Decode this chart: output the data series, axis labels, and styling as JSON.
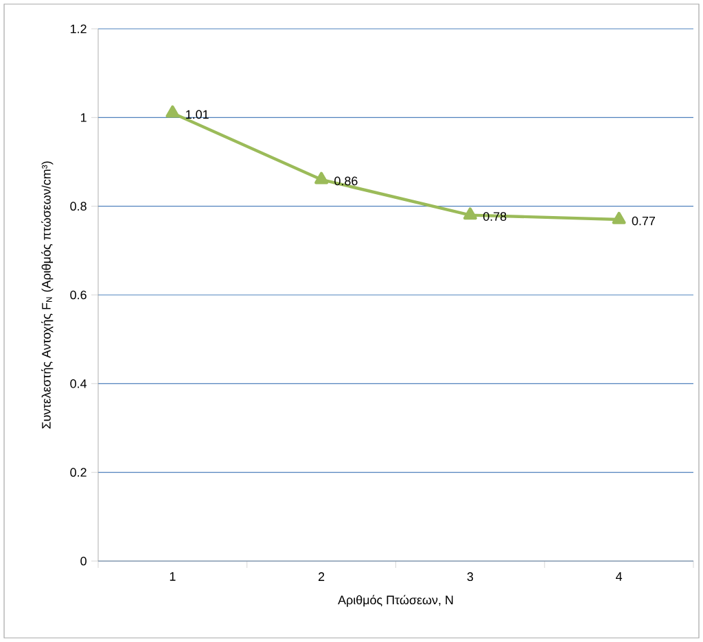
{
  "chart_data": {
    "type": "line",
    "xlabel": "Αριθμός Πτώσεων, N",
    "ylabel": "Συντελεστής Αντοχής F$_{N}$ (Αριθμός πτώσεων/cm³)",
    "categories": [
      "1",
      "2",
      "3",
      "4"
    ],
    "values": [
      1.01,
      0.86,
      0.78,
      0.77
    ],
    "color": "#9bbb59",
    "marker": "triangle",
    "line_style": "solid",
    "data_labels": true,
    "ylim": [
      0,
      1.2
    ],
    "yticks": [
      0,
      0.2,
      0.4,
      0.6,
      0.8,
      1,
      1.2
    ],
    "grid": "y"
  }
}
